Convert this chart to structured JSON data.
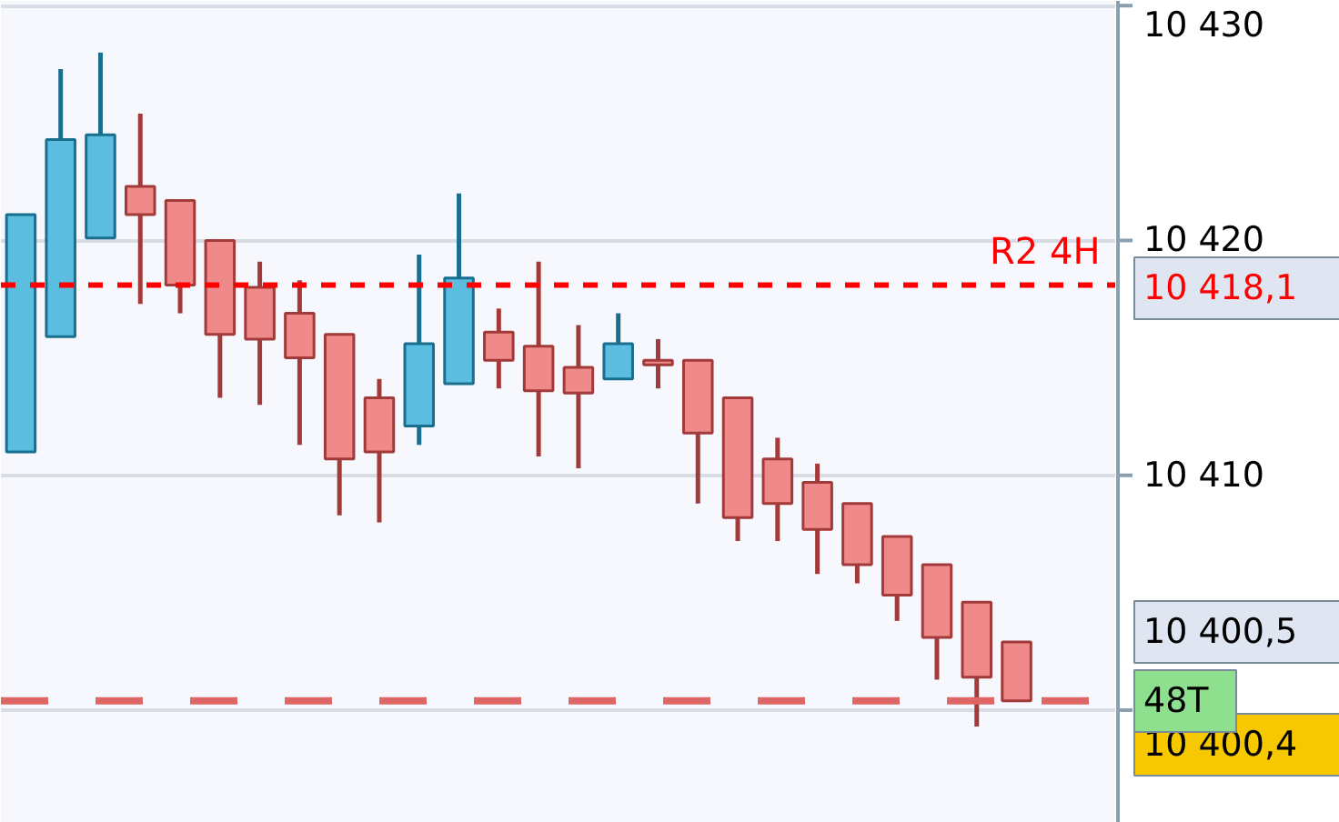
{
  "chart_data": {
    "type": "candlestick",
    "categories": [
      null,
      null,
      null,
      null,
      null,
      null,
      null,
      null,
      null,
      null,
      null,
      null,
      null,
      null,
      null,
      null,
      null,
      null,
      null,
      null,
      null,
      null,
      null,
      null,
      null,
      null,
      null,
      null
    ],
    "ohlc": [
      [
        10411.0,
        10421.1,
        10411.0,
        10421.1
      ],
      [
        10415.9,
        10427.3,
        10415.9,
        10424.3
      ],
      [
        10420.1,
        10428.0,
        10420.1,
        10424.5
      ],
      [
        10422.3,
        10425.4,
        10417.3,
        10421.1
      ],
      [
        10421.7,
        10421.7,
        10416.9,
        10418.1
      ],
      [
        10420.0,
        10420.0,
        10413.3,
        10416.0
      ],
      [
        10418.0,
        10419.1,
        10413.0,
        10415.8
      ],
      [
        10416.9,
        10418.3,
        10411.3,
        10415.0
      ],
      [
        10416.0,
        10416.0,
        10408.3,
        10410.7
      ],
      [
        10413.3,
        10414.1,
        10408.0,
        10411.0
      ],
      [
        10412.1,
        10419.4,
        10411.3,
        10415.6
      ],
      [
        10413.9,
        10422.0,
        10413.9,
        10418.4
      ],
      [
        10416.1,
        10417.1,
        10413.7,
        10414.9
      ],
      [
        10415.5,
        10419.1,
        10410.8,
        10413.6
      ],
      [
        10414.6,
        10416.4,
        10410.3,
        10413.5
      ],
      [
        10414.1,
        10416.9,
        10414.1,
        10415.6
      ],
      [
        10414.9,
        10415.8,
        10413.7,
        10414.7
      ],
      [
        10414.9,
        10414.9,
        10408.8,
        10411.8
      ],
      [
        10413.3,
        10413.3,
        10407.2,
        10408.2
      ],
      [
        10410.7,
        10411.6,
        10407.2,
        10408.8
      ],
      [
        10409.7,
        10410.5,
        10405.8,
        10407.7
      ],
      [
        10408.8,
        10408.8,
        10405.4,
        10406.2
      ],
      [
        10407.4,
        10407.4,
        10403.8,
        10404.9
      ],
      [
        10406.2,
        10406.2,
        10401.3,
        10403.1
      ],
      [
        10404.6,
        10404.6,
        10399.3,
        10401.4
      ],
      [
        10402.9,
        10402.9,
        10400.4,
        10400.4
      ],
      null,
      null
    ],
    "colors": [
      "#5bbde0",
      "#5bbde0",
      "#5bbde0",
      "#f08a8a",
      "#f08a8a",
      "#f08a8a",
      "#f08a8a",
      "#f08a8a",
      "#f08a8a",
      "#f08a8a",
      "#5bbde0",
      "#5bbde0",
      "#f08a8a",
      "#f08a8a",
      "#f08a8a",
      "#5bbde0",
      "#f08a8a",
      "#f08a8a",
      "#f08a8a",
      "#f08a8a",
      "#f08a8a",
      "#f08a8a",
      "#f08a8a",
      "#f08a8a",
      "#f08a8a",
      "#f08a8a",
      null,
      null
    ],
    "ylim": [
      10395.2,
      10430.2
    ],
    "yticks": [
      {
        "value": 10400,
        "label": null
      },
      {
        "value": 10410,
        "label": "10 410"
      },
      {
        "value": 10420,
        "label": "10 420"
      },
      {
        "value": 10430,
        "label": "10 430"
      }
    ],
    "grid": "y",
    "ref_lines": [
      {
        "axis": "y",
        "value": 10418.1,
        "label": "R2 4H",
        "color": "#ff0000",
        "line_style": "dotted"
      },
      {
        "axis": "y",
        "value": 10400.4,
        "color": "#e06666",
        "line_style": "dashed"
      }
    ],
    "annotations": [
      "10 418,1",
      "10 400,5",
      "10 400,4",
      "48T"
    ]
  }
}
